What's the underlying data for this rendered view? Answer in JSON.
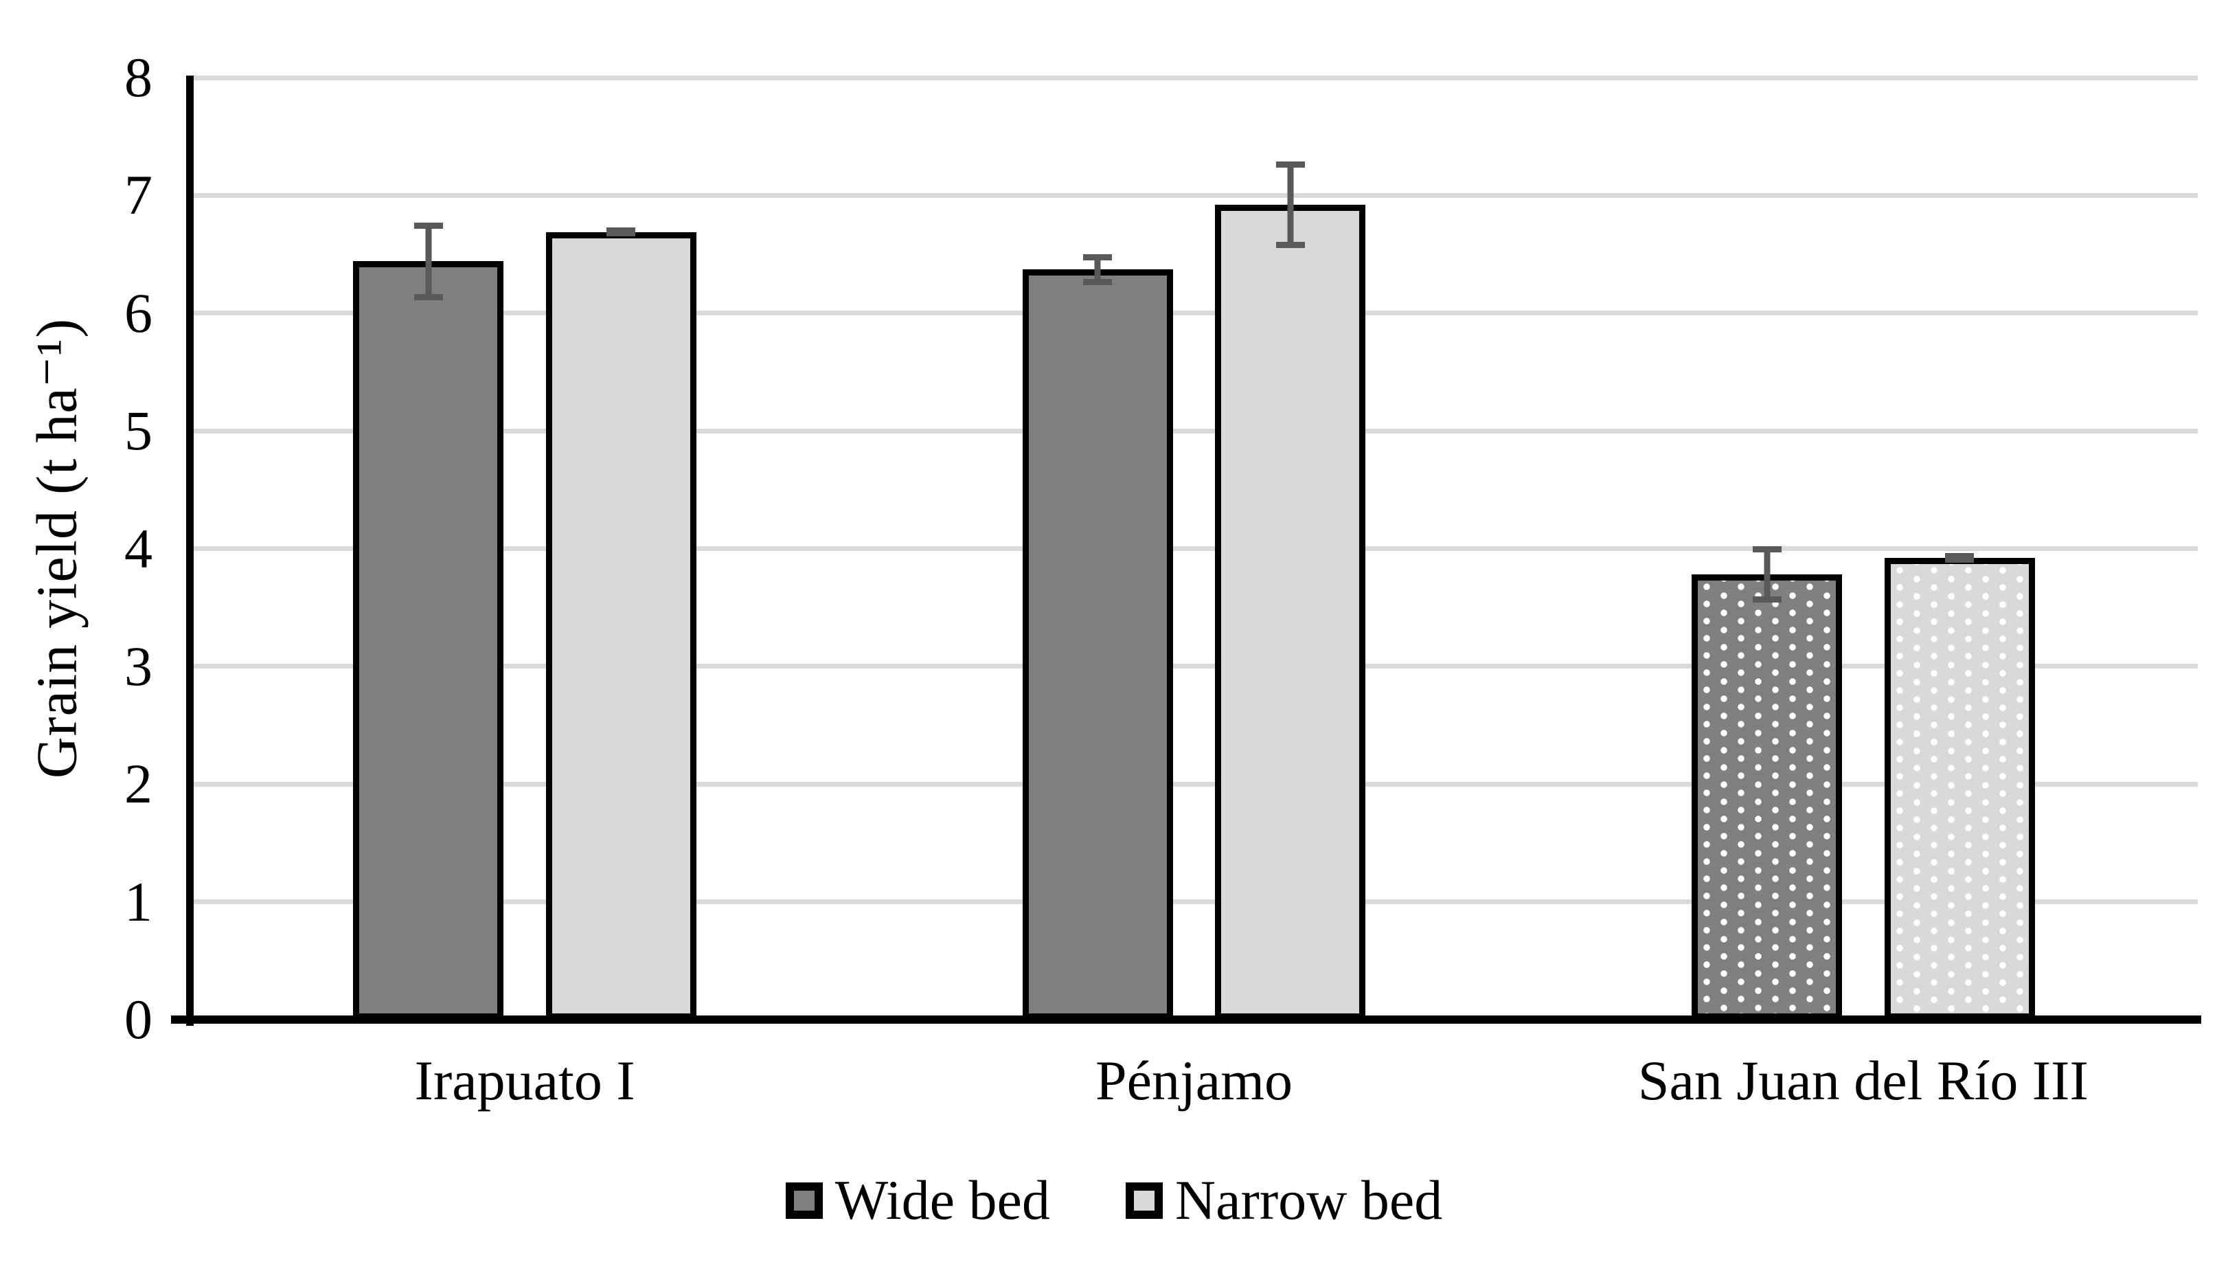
{
  "figure": {
    "background": "#ffffff"
  },
  "chart_data": {
    "type": "bar",
    "title": "",
    "xlabel": "",
    "ylabel": "Grain yield (t ha⁻¹)",
    "ylim": [
      0,
      8
    ],
    "yticks": [
      0,
      1,
      2,
      3,
      4,
      5,
      6,
      7,
      8
    ],
    "grid": true,
    "legend_position": "bottom",
    "categories": [
      "Irapuato I",
      "Pénjamo",
      "San Juan del Río III"
    ],
    "series": [
      {
        "name": "Wide bed",
        "values": [
          6.44,
          6.37,
          3.78
        ],
        "errors": [
          0.33,
          0.13,
          0.24
        ],
        "fill": "#7f7f7f"
      },
      {
        "name": "Narrow bed",
        "values": [
          6.69,
          6.92,
          3.92
        ],
        "errors": [
          0.04,
          0.37,
          0.04
        ],
        "fill": "#d9d9d9"
      }
    ],
    "dotted_pattern_categories": [
      false,
      false,
      true
    ],
    "colors": {
      "bar_border": "#000000",
      "error_bar": "#595959",
      "gridline": "#d9d9d9",
      "axis": "#000000",
      "text": "#000000",
      "pattern_dot": "#ffffff"
    }
  }
}
